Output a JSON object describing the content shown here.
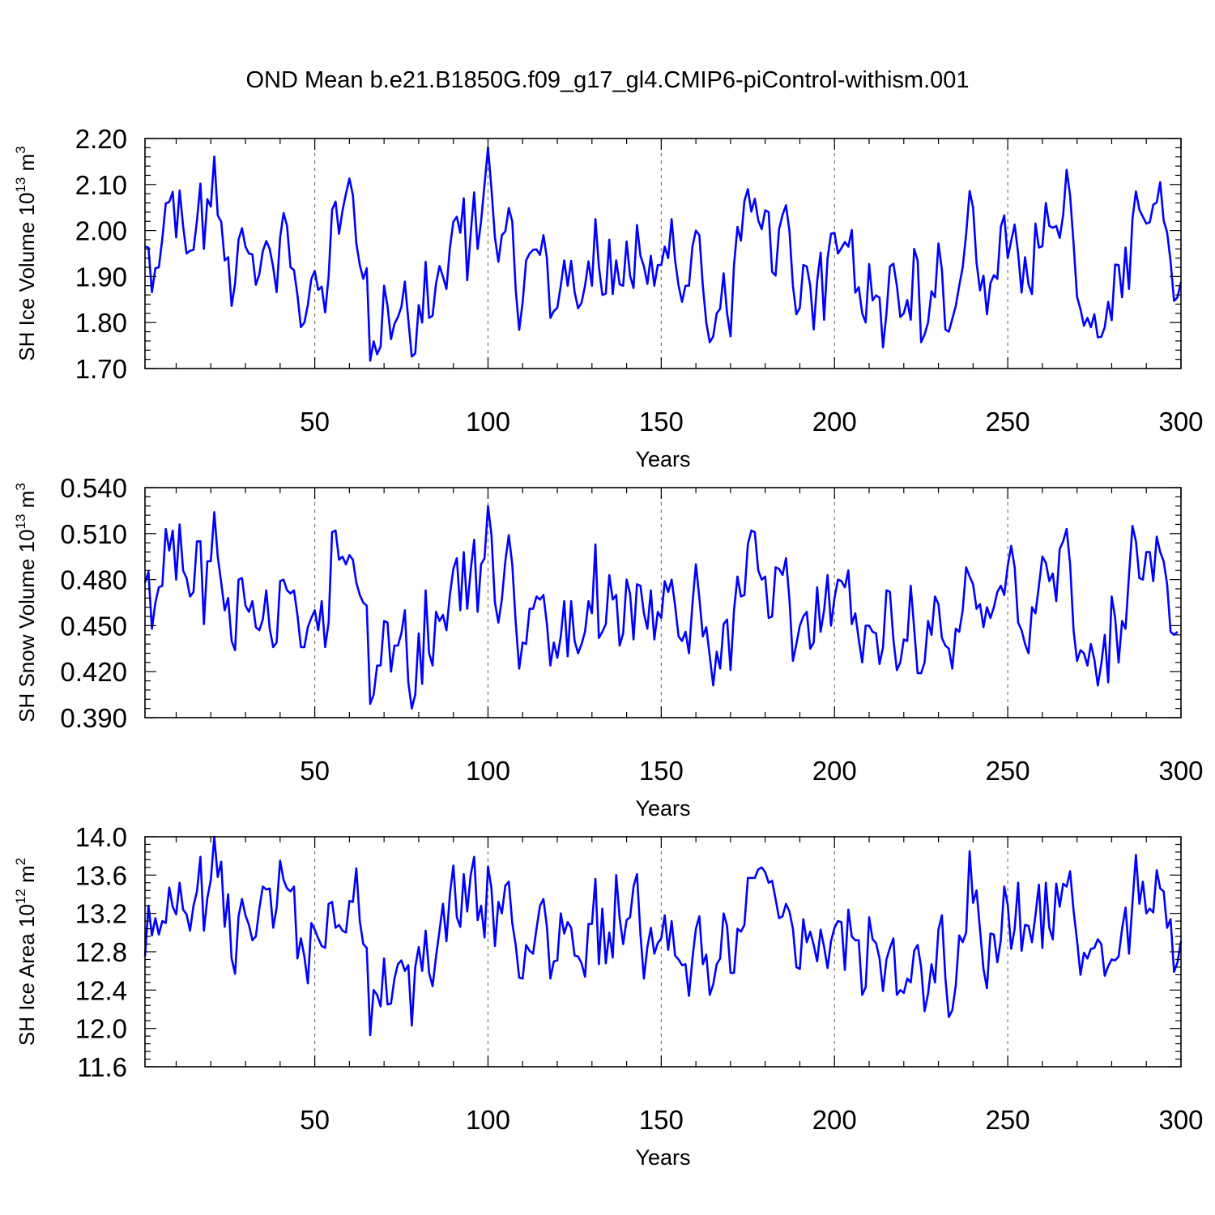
{
  "figure": {
    "title": "OND Mean b.e21.B1850G.f09_g17_gl4.CMIP6-piControl-withism.001"
  },
  "style": {
    "line_color": "#0000ff",
    "axis_color": "#000000",
    "grid_color": "#777777"
  },
  "chart_data": [
    {
      "type": "line",
      "name": "SH Ice Volume",
      "ylabel_main": "SH Ice Volume 10",
      "ylabel_exp": "13",
      "ylabel_unit": " m",
      "ylabel_unit_exp": "3",
      "xlabel": "Years",
      "xlim": [
        1,
        300
      ],
      "ylim": [
        1.7,
        2.2
      ],
      "x_ticks": [
        50,
        100,
        150,
        200,
        250,
        300
      ],
      "x_tick_labels": [
        "50",
        "100",
        "150",
        "200",
        "250",
        "300"
      ],
      "y_ticks": [
        1.7,
        1.8,
        1.9,
        2.0,
        2.1,
        2.2
      ],
      "y_tick_labels": [
        "1.70",
        "1.80",
        "1.90",
        "2.00",
        "2.10",
        "2.20"
      ],
      "vgrid_years": [
        50,
        100,
        150,
        200,
        250
      ],
      "x_start": 1,
      "values": [
        1.965,
        1.963,
        1.866,
        1.918,
        1.92,
        1.982,
        2.059,
        2.062,
        2.084,
        1.985,
        2.087,
        2.01,
        1.95,
        1.956,
        1.958,
        2.022,
        2.102,
        1.96,
        2.068,
        2.052,
        2.161,
        2.033,
        2.019,
        1.935,
        1.942,
        1.836,
        1.885,
        1.98,
        2.005,
        1.965,
        1.95,
        1.948,
        1.882,
        1.905,
        1.955,
        1.977,
        1.96,
        1.92,
        1.866,
        1.985,
        2.038,
        2.01,
        1.92,
        1.914,
        1.86,
        1.79,
        1.8,
        1.838,
        1.895,
        1.912,
        1.871,
        1.878,
        1.822,
        1.9,
        2.045,
        2.063,
        1.993,
        2.043,
        2.08,
        2.113,
        2.077,
        1.972,
        1.925,
        1.895,
        1.918,
        1.717,
        1.759,
        1.731,
        1.748,
        1.88,
        1.836,
        1.764,
        1.797,
        1.812,
        1.834,
        1.889,
        1.806,
        1.726,
        1.733,
        1.838,
        1.8,
        1.932,
        1.81,
        1.815,
        1.885,
        1.923,
        1.9,
        1.873,
        1.962,
        2.019,
        2.03,
        1.995,
        2.07,
        1.892,
        1.993,
        2.083,
        1.96,
        2.02,
        2.1,
        2.18,
        2.09,
        1.985,
        1.932,
        1.99,
        1.998,
        2.049,
        2.02,
        1.871,
        1.784,
        1.844,
        1.935,
        1.95,
        1.958,
        1.959,
        1.947,
        1.99,
        1.94,
        1.81,
        1.825,
        1.832,
        1.88,
        1.935,
        1.88,
        1.934,
        1.866,
        1.831,
        1.843,
        1.88,
        1.933,
        1.88,
        2.025,
        1.922,
        1.86,
        1.863,
        1.98,
        1.862,
        1.935,
        1.883,
        1.88,
        1.976,
        1.902,
        1.875,
        2.012,
        1.945,
        1.922,
        1.884,
        1.945,
        1.88,
        1.925,
        1.925,
        1.965,
        1.94,
        2.025,
        1.935,
        1.88,
        1.845,
        1.88,
        1.88,
        1.965,
        2.0,
        1.99,
        1.88,
        1.8,
        1.757,
        1.77,
        1.82,
        1.83,
        1.907,
        1.82,
        1.77,
        1.925,
        2.008,
        1.978,
        2.064,
        2.09,
        2.041,
        2.069,
        2.022,
        2.003,
        2.044,
        2.04,
        1.91,
        1.902,
        2.003,
        2.034,
        2.055,
        1.999,
        1.88,
        1.818,
        1.832,
        1.925,
        1.922,
        1.88,
        1.785,
        1.89,
        1.952,
        1.806,
        1.94,
        1.993,
        1.995,
        1.95,
        1.962,
        1.975,
        1.965,
        2.001,
        1.865,
        1.877,
        1.82,
        1.8,
        1.927,
        1.848,
        1.859,
        1.854,
        1.746,
        1.82,
        1.922,
        1.928,
        1.88,
        1.812,
        1.82,
        1.849,
        1.806,
        1.96,
        1.935,
        1.757,
        1.774,
        1.8,
        1.868,
        1.855,
        1.972,
        1.915,
        1.785,
        1.78,
        1.808,
        1.836,
        1.88,
        1.92,
        1.992,
        2.086,
        2.05,
        1.93,
        1.87,
        1.902,
        1.818,
        1.885,
        1.903,
        1.895,
        2.008,
        2.033,
        1.94,
        1.978,
        2.013,
        1.95,
        1.865,
        1.942,
        1.883,
        1.862,
        2.015,
        1.963,
        1.966,
        2.06,
        2.01,
        2.006,
        2.01,
        1.984,
        2.034,
        2.132,
        2.076,
        1.972,
        1.856,
        1.829,
        1.793,
        1.81,
        1.79,
        1.818,
        1.768,
        1.769,
        1.79,
        1.845,
        1.805,
        1.926,
        1.925,
        1.855,
        1.963,
        1.873,
        2.025,
        2.085,
        2.045,
        2.03,
        2.015,
        2.018,
        2.056,
        2.061,
        2.105,
        2.022,
        1.996,
        1.933,
        1.847,
        1.855,
        1.888
      ]
    },
    {
      "type": "line",
      "name": "SH Snow Volume",
      "ylabel_main": "SH Snow Volume 10",
      "ylabel_exp": "13",
      "ylabel_unit": " m",
      "ylabel_unit_exp": "3",
      "xlabel": "Years",
      "xlim": [
        1,
        300
      ],
      "ylim": [
        0.39,
        0.54
      ],
      "x_ticks": [
        50,
        100,
        150,
        200,
        250,
        300
      ],
      "x_tick_labels": [
        "50",
        "100",
        "150",
        "200",
        "250",
        "300"
      ],
      "y_ticks": [
        0.39,
        0.42,
        0.45,
        0.48,
        0.51,
        0.54
      ],
      "y_tick_labels": [
        "0.390",
        "0.420",
        "0.450",
        "0.480",
        "0.510",
        "0.540"
      ],
      "vgrid_years": [
        50,
        100,
        150,
        200,
        250
      ],
      "x_start": 1,
      "values": [
        0.478,
        0.485,
        0.448,
        0.465,
        0.475,
        0.476,
        0.513,
        0.499,
        0.512,
        0.48,
        0.516,
        0.486,
        0.481,
        0.469,
        0.472,
        0.505,
        0.505,
        0.451,
        0.492,
        0.492,
        0.524,
        0.495,
        0.478,
        0.46,
        0.468,
        0.44,
        0.434,
        0.48,
        0.481,
        0.463,
        0.459,
        0.466,
        0.449,
        0.447,
        0.454,
        0.473,
        0.448,
        0.436,
        0.439,
        0.479,
        0.48,
        0.473,
        0.471,
        0.473,
        0.457,
        0.436,
        0.436,
        0.449,
        0.455,
        0.46,
        0.447,
        0.466,
        0.436,
        0.452,
        0.511,
        0.512,
        0.493,
        0.495,
        0.49,
        0.496,
        0.493,
        0.478,
        0.47,
        0.465,
        0.463,
        0.399,
        0.405,
        0.424,
        0.424,
        0.453,
        0.452,
        0.42,
        0.437,
        0.437,
        0.445,
        0.46,
        0.413,
        0.396,
        0.405,
        0.445,
        0.412,
        0.473,
        0.432,
        0.424,
        0.459,
        0.453,
        0.457,
        0.447,
        0.47,
        0.487,
        0.494,
        0.46,
        0.498,
        0.461,
        0.486,
        0.506,
        0.459,
        0.49,
        0.494,
        0.528,
        0.509,
        0.465,
        0.452,
        0.467,
        0.492,
        0.509,
        0.49,
        0.452,
        0.422,
        0.439,
        0.438,
        0.461,
        0.461,
        0.469,
        0.467,
        0.47,
        0.451,
        0.424,
        0.439,
        0.429,
        0.443,
        0.466,
        0.43,
        0.466,
        0.44,
        0.432,
        0.438,
        0.446,
        0.466,
        0.458,
        0.503,
        0.442,
        0.446,
        0.451,
        0.483,
        0.467,
        0.47,
        0.437,
        0.445,
        0.48,
        0.471,
        0.441,
        0.477,
        0.476,
        0.458,
        0.448,
        0.473,
        0.441,
        0.459,
        0.455,
        0.479,
        0.472,
        0.48,
        0.463,
        0.443,
        0.44,
        0.446,
        0.432,
        0.464,
        0.49,
        0.468,
        0.443,
        0.449,
        0.43,
        0.411,
        0.433,
        0.422,
        0.451,
        0.454,
        0.421,
        0.46,
        0.482,
        0.469,
        0.47,
        0.503,
        0.512,
        0.511,
        0.486,
        0.48,
        0.482,
        0.455,
        0.456,
        0.488,
        0.487,
        0.483,
        0.494,
        0.467,
        0.427,
        0.438,
        0.45,
        0.456,
        0.459,
        0.435,
        0.439,
        0.475,
        0.446,
        0.46,
        0.483,
        0.45,
        0.468,
        0.48,
        0.479,
        0.475,
        0.486,
        0.451,
        0.458,
        0.441,
        0.426,
        0.45,
        0.45,
        0.446,
        0.445,
        0.425,
        0.436,
        0.473,
        0.472,
        0.441,
        0.421,
        0.426,
        0.441,
        0.44,
        0.476,
        0.448,
        0.419,
        0.419,
        0.426,
        0.453,
        0.444,
        0.469,
        0.464,
        0.442,
        0.437,
        0.435,
        0.422,
        0.448,
        0.446,
        0.46,
        0.488,
        0.482,
        0.477,
        0.461,
        0.464,
        0.449,
        0.462,
        0.455,
        0.462,
        0.472,
        0.476,
        0.47,
        0.489,
        0.502,
        0.488,
        0.452,
        0.447,
        0.438,
        0.432,
        0.462,
        0.458,
        0.476,
        0.495,
        0.491,
        0.479,
        0.484,
        0.466,
        0.5,
        0.505,
        0.513,
        0.49,
        0.447,
        0.427,
        0.434,
        0.432,
        0.424,
        0.438,
        0.428,
        0.411,
        0.425,
        0.444,
        0.413,
        0.469,
        0.455,
        0.426,
        0.453,
        0.448,
        0.483,
        0.515,
        0.505,
        0.481,
        0.48,
        0.498,
        0.498,
        0.479,
        0.508,
        0.498,
        0.492,
        0.477,
        0.446,
        0.444,
        0.446
      ]
    },
    {
      "type": "line",
      "name": "SH Ice Area",
      "ylabel_main": "SH Ice Area 10",
      "ylabel_exp": "12",
      "ylabel_unit": " m",
      "ylabel_unit_exp": "2",
      "xlabel": "Years",
      "xlim": [
        1,
        300
      ],
      "ylim": [
        11.6,
        14.0
      ],
      "x_ticks": [
        50,
        100,
        150,
        200,
        250,
        300
      ],
      "x_tick_labels": [
        "50",
        "100",
        "150",
        "200",
        "250",
        "300"
      ],
      "y_ticks": [
        11.6,
        12.0,
        12.4,
        12.8,
        13.2,
        13.6,
        14.0
      ],
      "y_tick_labels": [
        "11.6",
        "12.0",
        "12.4",
        "12.8",
        "13.2",
        "13.6",
        "14.0"
      ],
      "vgrid_years": [
        50,
        100,
        150,
        200,
        250
      ],
      "x_start": 1,
      "values": [
        12.75,
        13.28,
        12.97,
        13.15,
        12.98,
        13.12,
        13.1,
        13.47,
        13.27,
        13.19,
        13.52,
        13.24,
        13.19,
        13.02,
        13.28,
        13.43,
        13.79,
        13.02,
        13.36,
        13.55,
        14.0,
        13.58,
        13.74,
        13.06,
        13.4,
        12.73,
        12.57,
        13.17,
        13.35,
        13.18,
        13.08,
        12.92,
        12.96,
        13.25,
        13.48,
        13.45,
        13.46,
        13.05,
        13.26,
        13.75,
        13.55,
        13.46,
        13.43,
        13.48,
        12.73,
        12.94,
        12.75,
        12.47,
        13.1,
        13.03,
        12.94,
        12.86,
        12.84,
        13.3,
        13.32,
        13.05,
        13.08,
        13.02,
        13.0,
        13.33,
        13.32,
        13.67,
        13.12,
        12.88,
        12.84,
        11.93,
        12.4,
        12.35,
        12.23,
        12.73,
        12.25,
        12.26,
        12.52,
        12.67,
        12.71,
        12.6,
        12.66,
        12.03,
        12.64,
        12.85,
        12.6,
        13.02,
        12.58,
        12.44,
        12.75,
        13.02,
        13.3,
        12.91,
        13.4,
        13.7,
        13.16,
        13.06,
        13.61,
        13.22,
        13.6,
        13.79,
        13.13,
        13.28,
        12.95,
        13.69,
        13.46,
        12.86,
        13.32,
        13.2,
        13.49,
        13.53,
        13.1,
        12.87,
        12.53,
        12.52,
        12.87,
        12.81,
        12.78,
        13.04,
        13.28,
        13.35,
        13.06,
        12.52,
        12.7,
        12.71,
        13.2,
        12.99,
        13.11,
        13.05,
        12.76,
        12.75,
        12.68,
        12.54,
        13.09,
        13.09,
        13.56,
        12.67,
        13.25,
        12.68,
        13.0,
        12.74,
        13.6,
        13.15,
        12.88,
        13.13,
        13.16,
        13.48,
        13.61,
        12.98,
        12.52,
        12.85,
        13.05,
        12.78,
        12.89,
        12.94,
        13.18,
        12.82,
        13.12,
        12.76,
        12.72,
        12.66,
        12.67,
        12.34,
        12.73,
        13.04,
        13.17,
        12.67,
        12.77,
        12.35,
        12.46,
        12.67,
        12.73,
        13.2,
        13.07,
        12.58,
        12.58,
        13.04,
        13.01,
        13.08,
        13.57,
        13.57,
        13.57,
        13.66,
        13.68,
        13.63,
        13.52,
        13.54,
        13.35,
        13.15,
        13.17,
        13.3,
        13.22,
        13.04,
        12.64,
        12.62,
        13.14,
        12.9,
        13.01,
        12.87,
        12.7,
        13.03,
        12.85,
        12.63,
        12.91,
        13.05,
        13.12,
        13.11,
        12.61,
        13.24,
        12.96,
        12.92,
        12.92,
        12.35,
        12.43,
        13.16,
        12.93,
        12.89,
        12.73,
        12.39,
        12.72,
        12.84,
        12.94,
        12.35,
        12.4,
        12.37,
        12.52,
        12.48,
        12.81,
        12.87,
        12.64,
        12.18,
        12.36,
        12.67,
        12.48,
        13.03,
        13.18,
        12.53,
        12.12,
        12.19,
        12.45,
        12.97,
        12.9,
        13.0,
        13.85,
        13.31,
        13.44,
        13.03,
        12.62,
        12.42,
        12.99,
        12.98,
        12.69,
        12.92,
        13.48,
        13.29,
        12.83,
        13.04,
        13.52,
        12.81,
        13.08,
        13.07,
        12.9,
        13.18,
        13.5,
        12.84,
        13.52,
        13.05,
        12.93,
        13.51,
        13.27,
        13.51,
        13.48,
        13.64,
        13.23,
        12.92,
        12.56,
        12.79,
        12.73,
        12.83,
        12.84,
        12.93,
        12.88,
        12.55,
        12.65,
        12.72,
        12.71,
        12.75,
        13.04,
        13.26,
        12.78,
        13.31,
        13.81,
        13.3,
        13.53,
        13.2,
        13.25,
        13.21,
        13.65,
        13.46,
        13.43,
        13.05,
        13.14,
        12.59,
        12.69,
        12.91
      ]
    }
  ]
}
